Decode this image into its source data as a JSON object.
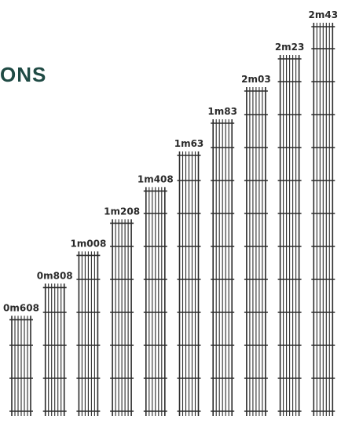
{
  "heading": "ONS",
  "colors": {
    "heading": "#1f4a44",
    "panel": "#2b2b2b",
    "label": "#2a2a2a"
  },
  "chart_data": {
    "type": "bar",
    "unit": "m",
    "categories": [
      "0m608",
      "0m808",
      "1m008",
      "1m208",
      "1m408",
      "1m63",
      "1m83",
      "2m03",
      "2m23",
      "2m43"
    ],
    "values": [
      0.608,
      0.808,
      1.008,
      1.208,
      1.408,
      1.63,
      1.83,
      2.03,
      2.23,
      2.43
    ],
    "title": "",
    "xlabel": "",
    "ylabel": "",
    "ylim": [
      0,
      2.43
    ],
    "grid": false,
    "legend": "none"
  }
}
